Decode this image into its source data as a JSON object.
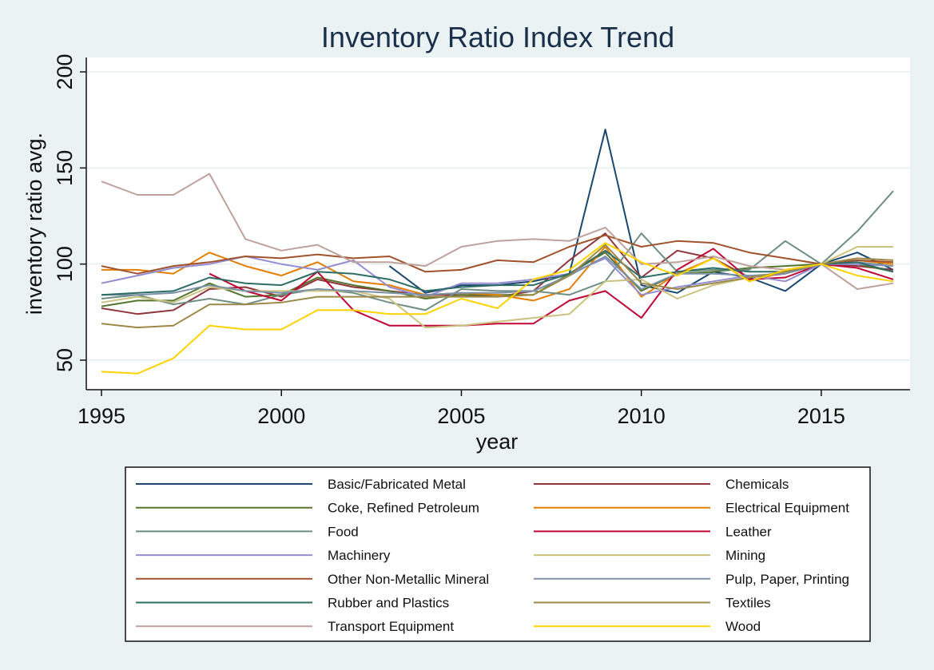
{
  "chart_data": {
    "type": "line",
    "title": "Inventory Ratio Index Trend",
    "xlabel": "year",
    "ylabel": "inventory ratio avg.",
    "xlim": [
      1995,
      2017
    ],
    "ylim": [
      35,
      210
    ],
    "xticks": [
      1995,
      2000,
      2005,
      2010,
      2015
    ],
    "yticks": [
      50,
      100,
      150,
      200
    ],
    "grid": "horizontal",
    "legend_position": "bottom, two columns",
    "series": [
      {
        "name": "Basic/Fabricated Metal",
        "color": "#1a476f",
        "x": [
          2003,
          2004,
          2005,
          2006,
          2007,
          2008,
          2009,
          2010,
          2011,
          2012,
          2013,
          2014,
          2015,
          2016,
          2017
        ],
        "values": [
          99,
          85,
          89,
          89,
          91,
          95,
          170,
          89,
          85,
          96,
          93,
          86,
          100,
          106,
          97
        ]
      },
      {
        "name": "Chemicals",
        "color": "#90353b",
        "x": [
          1995,
          1996,
          1997,
          1998,
          1999,
          2000,
          2001,
          2002,
          2003,
          2004,
          2005,
          2006,
          2007,
          2008,
          2009,
          2010,
          2011,
          2012,
          2013,
          2014,
          2015,
          2016,
          2017
        ],
        "values": [
          77,
          74,
          76,
          87,
          88,
          83,
          92,
          88,
          86,
          84,
          84,
          83,
          86,
          102,
          116,
          93,
          107,
          103,
          93,
          95,
          100,
          99,
          97
        ]
      },
      {
        "name": "Coke, Refined Petroleum",
        "color": "#55752f",
        "x": [
          1995,
          1996,
          1997,
          1998,
          1999,
          2000,
          2001,
          2002,
          2003,
          2004,
          2005,
          2006,
          2007,
          2008,
          2009,
          2010,
          2011,
          2012,
          2013,
          2014,
          2015,
          2016,
          2017
        ],
        "values": [
          78,
          81,
          81,
          90,
          83,
          84,
          93,
          89,
          86,
          82,
          84,
          84,
          84,
          95,
          106,
          86,
          95,
          96,
          98,
          99,
          100,
          100,
          96
        ]
      },
      {
        "name": "Electrical Equipment",
        "color": "#e37e00",
        "x": [
          1995,
          1996,
          1997,
          1998,
          1999,
          2000,
          2001,
          2002,
          2003,
          2004,
          2005,
          2006,
          2007,
          2008,
          2009,
          2010,
          2011,
          2012,
          2013,
          2014,
          2015,
          2016,
          2017
        ],
        "values": [
          97,
          97,
          95,
          106,
          99,
          94,
          101,
          91,
          89,
          84,
          85,
          84,
          81,
          87,
          109,
          83,
          95,
          103,
          91,
          96,
          100,
          102,
          100
        ]
      },
      {
        "name": "Food",
        "color": "#6e8e84",
        "x": [
          1995,
          1996,
          1997,
          1998,
          1999,
          2000,
          2001,
          2002,
          2003,
          2004,
          2005,
          2006,
          2007,
          2008,
          2009,
          2010,
          2011,
          2012,
          2013,
          2014,
          2015,
          2016,
          2017
        ],
        "values": [
          82,
          84,
          79,
          82,
          79,
          84,
          87,
          85,
          80,
          76,
          87,
          86,
          86,
          84,
          91,
          116,
          96,
          97,
          97,
          112,
          100,
          117,
          138
        ]
      },
      {
        "name": "Leather",
        "color": "#c10534",
        "x": [
          1998,
          1999,
          2000,
          2001,
          2002,
          2003,
          2004,
          2005,
          2006,
          2007,
          2008,
          2009,
          2010,
          2011,
          2012,
          2013,
          2014,
          2015,
          2016,
          2017
        ],
        "values": [
          95,
          86,
          81,
          96,
          76,
          68,
          68,
          68,
          69,
          69,
          81,
          86,
          72,
          97,
          108,
          92,
          93,
          100,
          98,
          92
        ]
      },
      {
        "name": "Machinery",
        "color": "#938dd2",
        "x": [
          1995,
          1996,
          1997,
          1998,
          1999,
          2000,
          2001,
          2002,
          2003,
          2004,
          2005,
          2006,
          2007,
          2008,
          2009,
          2010,
          2011,
          2012,
          2013,
          2014,
          2015,
          2016,
          2017
        ],
        "values": [
          90,
          94,
          98,
          100,
          104,
          100,
          97,
          102,
          88,
          83,
          90,
          90,
          92,
          95,
          103,
          84,
          88,
          91,
          94,
          91,
          100,
          100,
          99
        ]
      },
      {
        "name": "Mining",
        "color": "#cac27e",
        "x": [
          1995,
          1996,
          1997,
          1998,
          1999,
          2000,
          2001,
          2002,
          2003,
          2004,
          2005,
          2006,
          2007,
          2008,
          2009,
          2010,
          2011,
          2012,
          2013,
          2014,
          2015,
          2016,
          2017
        ],
        "values": [
          80,
          83,
          80,
          88,
          86,
          86,
          86,
          86,
          82,
          67,
          68,
          70,
          72,
          74,
          91,
          92,
          82,
          89,
          93,
          96,
          100,
          109,
          109
        ]
      },
      {
        "name": "Other Non-Metallic Mineral",
        "color": "#a0522d",
        "x": [
          1995,
          1996,
          1997,
          1998,
          1999,
          2000,
          2001,
          2002,
          2003,
          2004,
          2005,
          2006,
          2007,
          2008,
          2009,
          2010,
          2011,
          2012,
          2013,
          2014,
          2015,
          2016,
          2017
        ],
        "values": [
          99,
          95,
          99,
          101,
          104,
          103,
          105,
          103,
          104,
          96,
          97,
          102,
          101,
          109,
          115,
          109,
          112,
          111,
          106,
          103,
          100,
          102,
          101
        ]
      },
      {
        "name": "Pulp, Paper, Printing",
        "color": "#7b92a8",
        "x": [
          1995,
          1996,
          1997,
          1998,
          1999,
          2000,
          2001,
          2002,
          2003,
          2004,
          2005,
          2006,
          2007,
          2008,
          2009,
          2010,
          2011,
          2012,
          2013,
          2014,
          2015,
          2016,
          2017
        ],
        "values": [
          84,
          84,
          85,
          89,
          86,
          85,
          87,
          86,
          85,
          84,
          85,
          85,
          86,
          94,
          104,
          87,
          95,
          95,
          94,
          95,
          100,
          101,
          99
        ]
      },
      {
        "name": "Rubber and Plastics",
        "color": "#2d6d66",
        "x": [
          1995,
          1996,
          1997,
          1998,
          1999,
          2000,
          2001,
          2002,
          2003,
          2004,
          2005,
          2006,
          2007,
          2008,
          2009,
          2010,
          2011,
          2012,
          2013,
          2014,
          2015,
          2016,
          2017
        ],
        "values": [
          84,
          85,
          86,
          93,
          90,
          89,
          96,
          95,
          92,
          86,
          88,
          89,
          89,
          95,
          107,
          93,
          96,
          98,
          96,
          96,
          100,
          101,
          96
        ]
      },
      {
        "name": "Textiles",
        "color": "#9c8847",
        "x": [
          1995,
          1996,
          1997,
          1998,
          1999,
          2000,
          2001,
          2002,
          2003,
          2004,
          2005,
          2006,
          2007,
          2008,
          2009,
          2010,
          2011,
          2012,
          2013,
          2014,
          2015,
          2016,
          2017
        ],
        "values": [
          69,
          67,
          68,
          79,
          79,
          80,
          83,
          83,
          83,
          83,
          83,
          83,
          84,
          94,
          110,
          90,
          87,
          90,
          93,
          96,
          100,
          103,
          102
        ]
      },
      {
        "name": "Transport Equipment",
        "color": "#bfa19c",
        "x": [
          1995,
          1996,
          1997,
          1998,
          1999,
          2000,
          2001,
          2002,
          2003,
          2004,
          2005,
          2006,
          2007,
          2008,
          2009,
          2010,
          2011,
          2012,
          2013,
          2014,
          2015,
          2016,
          2017
        ],
        "values": [
          143,
          136,
          136,
          147,
          113,
          107,
          110,
          101,
          101,
          99,
          109,
          112,
          113,
          112,
          119,
          100,
          101,
          104,
          99,
          97,
          100,
          87,
          90
        ]
      },
      {
        "name": "Wood",
        "color": "#ffd200",
        "x": [
          1995,
          1996,
          1997,
          1998,
          1999,
          2000,
          2001,
          2002,
          2003,
          2004,
          2005,
          2006,
          2007,
          2008,
          2009,
          2010,
          2011,
          2012,
          2013,
          2014,
          2015,
          2016,
          2017
        ],
        "values": [
          44,
          43,
          51,
          68,
          66,
          66,
          76,
          76,
          74,
          74,
          82,
          77,
          92,
          97,
          111,
          101,
          94,
          103,
          91,
          97,
          100,
          94,
          91
        ]
      }
    ]
  }
}
